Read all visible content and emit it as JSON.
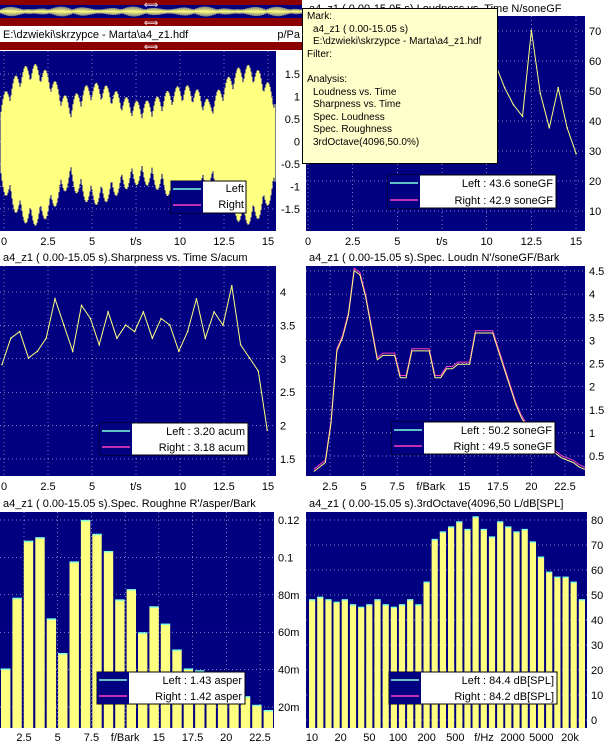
{
  "overview": {
    "file_path": "E:\\dzwieki\\skrzypce - Marta\\a4_z1.hdf",
    "unit_suffix": "p/Pa",
    "arrow_glyph": "⟺"
  },
  "colors": {
    "plot_bg": "#000080",
    "bar_fill": "#ffff80",
    "left_trace": "#80ffe0",
    "right_trace": "#ff40c0",
    "header_red": "#8b0000",
    "tooltip_bg": "#ffffcc"
  },
  "tooltip": {
    "lines": [
      "Mark:",
      "a4_z1 ( 0.00-15.05 s)",
      "E:\\dzwieki\\skrzypce - Marta\\a4_z1.hdf",
      "Filter:",
      "",
      "Analysis:",
      "Loudness vs. Time",
      "Sharpness vs. Time",
      "Spec. Loudness",
      "Spec. Roughness",
      "3rdOctave(4096,50.0%)"
    ]
  },
  "panels": {
    "waveform": {
      "y_ticks": [
        "1.5",
        "1",
        "0.5",
        "0",
        "-0.5",
        "-1",
        "-1.5"
      ],
      "x_ticks": [
        "0",
        "2.5",
        "5",
        "t/s",
        "10",
        "12.5",
        "15"
      ],
      "legend": {
        "left": "Left",
        "right": "Right"
      }
    },
    "loudness": {
      "title": "a4_z1 ( 0.00-15.05 s).Loudness vs. Time N/soneGF",
      "y_ticks": [
        "70",
        "60",
        "50",
        "40",
        "30",
        "20",
        "10"
      ],
      "x_ticks": [
        "0",
        "2.5",
        "5",
        "t/s",
        "10",
        "12.5",
        "15"
      ],
      "legend": {
        "left": "Left : 43.6 soneGF",
        "right": "Right : 42.9 soneGF"
      }
    },
    "sharpness": {
      "title": "a4_z1 ( 0.00-15.05 s).Sharpness vs. Time  S/acum",
      "y_ticks": [
        "4",
        "3.5",
        "3",
        "2.5",
        "2",
        "1.5"
      ],
      "x_ticks": [
        "0",
        "2.5",
        "5",
        "t/s",
        "10",
        "12.5",
        "15"
      ],
      "legend": {
        "left": "Left : 3.20 acum",
        "right": "Right : 3.18 acum"
      }
    },
    "spec_loudness": {
      "title": "a4_z1 ( 0.00-15.05 s).Spec. Loudn N'/soneGF/Bark",
      "y_ticks": [
        "4.5",
        "4",
        "3.5",
        "3",
        "2.5",
        "2",
        "1.5",
        "1",
        "0.5"
      ],
      "x_ticks": [
        "2.5",
        "5",
        "7.5",
        "f/Bark",
        "15",
        "17.5",
        "20",
        "22.5"
      ],
      "legend": {
        "left": "Left : 50.2 soneGF",
        "right": "Right : 49.5 soneGF"
      }
    },
    "spec_roughness": {
      "title": "a4_z1 ( 0.00-15.05 s).Spec. Roughne R'/asper/Bark",
      "y_ticks": [
        "0.12",
        "0.1",
        "80m",
        "60m",
        "40m",
        "20m"
      ],
      "x_ticks": [
        "2.5",
        "5",
        "7.5",
        "f/Bark",
        "15",
        "17.5",
        "20",
        "22.5"
      ],
      "legend": {
        "left": "Left : 1.43 asper",
        "right": "Right : 1.42 asper"
      }
    },
    "third_octave": {
      "title": "a4_z1 ( 0.00-15.05 s).3rdOctave(4096,50 L/dB[SPL]",
      "y_ticks": [
        "80",
        "70",
        "60",
        "50",
        "40",
        "30",
        "20",
        "10",
        "0"
      ],
      "x_ticks": [
        "10",
        "20",
        "50",
        "100",
        "200",
        "500",
        "f/Hz",
        "2000",
        "5000",
        "20k"
      ],
      "legend": {
        "left": "Left : 84.4 dB[SPL]",
        "right": "Right : 84.2 dB[SPL]"
      }
    }
  },
  "chart_data": [
    {
      "type": "line",
      "name": "loudness",
      "x": [
        0,
        0.5,
        1,
        1.5,
        2,
        2.5,
        3,
        3.5,
        4,
        4.5,
        5,
        5.5,
        6,
        6.5,
        7,
        7.5,
        8,
        8.5,
        9,
        9.5,
        10,
        10.5,
        11,
        11.5,
        12,
        12.5,
        13,
        13.5,
        14,
        14.5,
        15
      ],
      "y": [
        45,
        55,
        60,
        52,
        58,
        60,
        62,
        60,
        55,
        50,
        48,
        54,
        52,
        55,
        57,
        58,
        60,
        55,
        58,
        56,
        52,
        58,
        50,
        44,
        40,
        70,
        48,
        36,
        50,
        36,
        27
      ],
      "ylim": [
        0,
        75
      ],
      "xlim": [
        0,
        15.5
      ]
    },
    {
      "type": "line",
      "name": "sharpness",
      "x": [
        0,
        0.5,
        1,
        1.5,
        2,
        2.5,
        3,
        3.5,
        4,
        4.5,
        5,
        5.5,
        6,
        6.5,
        7,
        7.5,
        8,
        8.5,
        9,
        9.5,
        10,
        10.5,
        11,
        11.5,
        12,
        12.5,
        13,
        13.5,
        14,
        14.5,
        15
      ],
      "y": [
        2.9,
        3.3,
        3.4,
        3.0,
        3.1,
        3.3,
        3.9,
        3.5,
        3.1,
        3.8,
        3.6,
        3.2,
        3.7,
        3.3,
        3.5,
        3.4,
        3.7,
        3.3,
        3.6,
        3.5,
        3.1,
        3.4,
        3.9,
        3.3,
        3.7,
        3.5,
        4.1,
        3.2,
        3.0,
        2.8,
        1.9
      ],
      "ylim": [
        1.2,
        4.4
      ],
      "xlim": [
        0,
        15.5
      ]
    },
    {
      "type": "line",
      "name": "spec_loudness",
      "x": [
        0.5,
        1,
        1.5,
        2,
        2.5,
        3,
        3.5,
        4,
        4.5,
        5,
        5.5,
        6,
        6.5,
        7,
        7.5,
        8,
        8.5,
        9,
        9.5,
        10,
        10.5,
        11,
        11.5,
        12,
        12.5,
        13,
        13.5,
        14,
        14.5,
        15,
        15.5,
        16,
        16.5,
        17,
        17.5,
        18,
        18.5,
        19,
        19.5,
        20,
        20.5,
        21,
        21.5,
        22,
        22.5,
        23,
        23.5,
        24
      ],
      "y": [
        0.1,
        0.2,
        0.3,
        1.2,
        2.8,
        3.1,
        3.6,
        4.6,
        4.5,
        4.0,
        3.3,
        2.6,
        2.7,
        2.7,
        2.7,
        2.2,
        2.2,
        2.8,
        2.8,
        2.8,
        2.8,
        2.2,
        2.2,
        2.4,
        2.4,
        2.5,
        2.5,
        2.5,
        3.2,
        3.2,
        3.2,
        3.2,
        2.8,
        2.4,
        2.0,
        1.6,
        1.3,
        1.1,
        0.9,
        0.8,
        0.7,
        0.6,
        0.5,
        0.4,
        0.35,
        0.3,
        0.2,
        0.15
      ],
      "ylim": [
        0,
        4.7
      ],
      "xlim": [
        0,
        24
      ]
    },
    {
      "type": "bar",
      "name": "spec_roughness",
      "x": [
        0.5,
        1.5,
        2.5,
        3.5,
        4.5,
        5.5,
        6.5,
        7.5,
        8.5,
        9.5,
        10.5,
        11.5,
        12.5,
        13.5,
        14.5,
        15.5,
        16.5,
        17.5,
        18.5,
        19.5,
        20.5,
        21.5,
        22.5,
        23.5
      ],
      "values": [
        0.034,
        0.075,
        0.108,
        0.11,
        0.063,
        0.043,
        0.096,
        0.12,
        0.112,
        0.102,
        0.074,
        0.08,
        0.055,
        0.07,
        0.06,
        0.045,
        0.034,
        0.033,
        0.03,
        0.025,
        0.022,
        0.018,
        0.013,
        0.01
      ],
      "ylim": [
        0,
        0.125
      ],
      "xlim": [
        0,
        24
      ]
    },
    {
      "type": "bar",
      "name": "third_octave",
      "categories": [
        "10",
        "12.5",
        "16",
        "20",
        "25",
        "31.5",
        "40",
        "50",
        "63",
        "80",
        "100",
        "125",
        "160",
        "200",
        "250",
        "315",
        "400",
        "500",
        "630",
        "800",
        "1000",
        "1250",
        "1600",
        "2000",
        "2500",
        "3150",
        "4000",
        "5000",
        "6300",
        "8000",
        "10000",
        "12500",
        "16000",
        "20000"
      ],
      "values": [
        51,
        52,
        51,
        50,
        51,
        49,
        48,
        49,
        51,
        49,
        48,
        49,
        51,
        49,
        58,
        75,
        78,
        80,
        82,
        79,
        84,
        79,
        76,
        82,
        80,
        78,
        79,
        74,
        68,
        62,
        60,
        60,
        58,
        51
      ],
      "ylim": [
        0,
        86
      ]
    }
  ]
}
